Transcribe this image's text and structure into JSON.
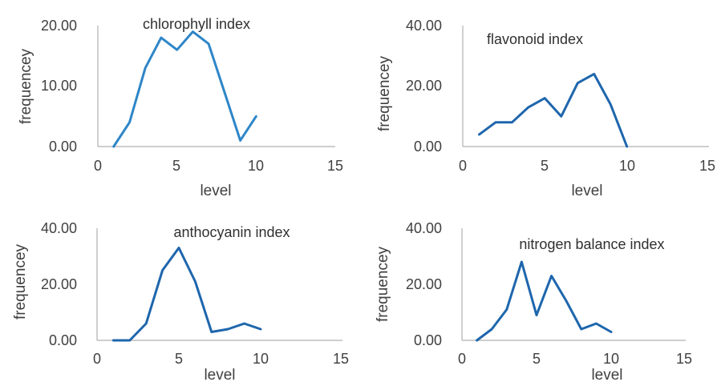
{
  "chart_data": [
    {
      "type": "line",
      "title": "chlorophyll index",
      "xlabel": "level",
      "ylabel": "frequencey",
      "xlim": [
        0,
        15
      ],
      "ylim": [
        0,
        20
      ],
      "xticks": [
        "0",
        "5",
        "10",
        "15"
      ],
      "yticks": [
        "0.00",
        "10.00",
        "20.00"
      ],
      "grid": false,
      "color": "#2e86c8",
      "x": [
        1,
        2,
        3,
        4,
        5,
        6,
        7,
        8,
        9,
        10
      ],
      "y": [
        0,
        4,
        13,
        18,
        16,
        19,
        17,
        9,
        1,
        5
      ]
    },
    {
      "type": "line",
      "title": "flavonoid index",
      "xlabel": "level",
      "ylabel": "frequencey",
      "xlim": [
        0,
        15
      ],
      "ylim": [
        0,
        40
      ],
      "xticks": [
        "0",
        "5",
        "10",
        "15"
      ],
      "yticks": [
        "0.00",
        "20.00",
        "40.00"
      ],
      "grid": false,
      "color": "#1e66ad",
      "x": [
        1,
        2,
        3,
        4,
        5,
        6,
        7,
        8,
        9,
        10
      ],
      "y": [
        4,
        8,
        8,
        13,
        16,
        10,
        21,
        24,
        14,
        0
      ]
    },
    {
      "type": "line",
      "title": "anthocyanin index",
      "xlabel": "level",
      "ylabel": "frequencey",
      "xlim": [
        0,
        15
      ],
      "ylim": [
        0,
        40
      ],
      "xticks": [
        "0",
        "5",
        "10",
        "15"
      ],
      "yticks": [
        "0.00",
        "20.00",
        "40.00"
      ],
      "grid": false,
      "color": "#1e66ad",
      "x": [
        1,
        2,
        3,
        4,
        5,
        6,
        7,
        8,
        9,
        10
      ],
      "y": [
        0,
        0,
        6,
        25,
        33,
        21,
        3,
        4,
        6,
        4
      ]
    },
    {
      "type": "line",
      "title": "nitrogen balance index",
      "xlabel": "level",
      "ylabel": "frequencey",
      "xlim": [
        0,
        15
      ],
      "ylim": [
        0,
        40
      ],
      "xticks": [
        "0",
        "5",
        "10",
        "15"
      ],
      "yticks": [
        "0.00",
        "20.00",
        "40.00"
      ],
      "grid": false,
      "color": "#1e66ad",
      "x": [
        1,
        2,
        3,
        4,
        5,
        6,
        7,
        8,
        9,
        10
      ],
      "y": [
        0,
        4,
        11,
        28,
        9,
        23,
        14,
        4,
        6,
        3
      ]
    }
  ]
}
